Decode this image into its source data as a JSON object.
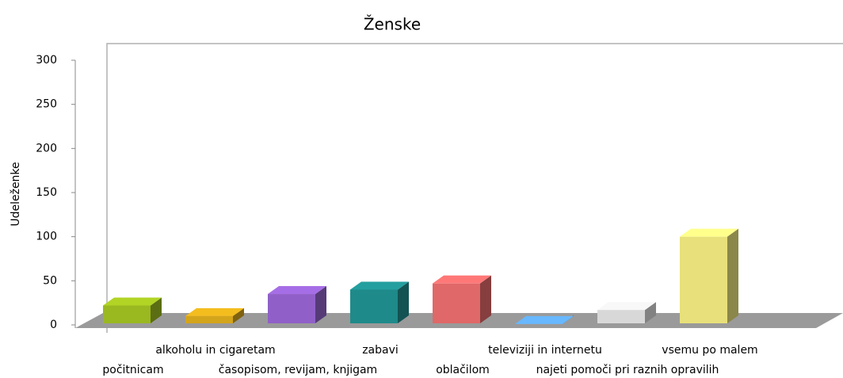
{
  "chart_data": {
    "type": "bar3d",
    "title": "Ženske",
    "y_label": "Udeleženke",
    "categories": [
      "počitnicam",
      "alkoholu in cigaretam",
      "časopisom, revijam, knjigam",
      "zabavi",
      "oblačilom",
      "televiziji in internetu",
      "najeti pomoči pri raznih opravilih",
      "vsemu po malem"
    ],
    "values": [
      22,
      10,
      35,
      40,
      47,
      1,
      17,
      100
    ],
    "colors": [
      "#9ab820",
      "#d4a41a",
      "#9060c8",
      "#1f8a8a",
      "#e06868",
      "#5aa0e0",
      "#d8d8d8",
      "#e8e07a"
    ],
    "ylim": [
      0,
      300
    ],
    "yticks": [
      0,
      50,
      100,
      150,
      200,
      250,
      300
    ]
  }
}
